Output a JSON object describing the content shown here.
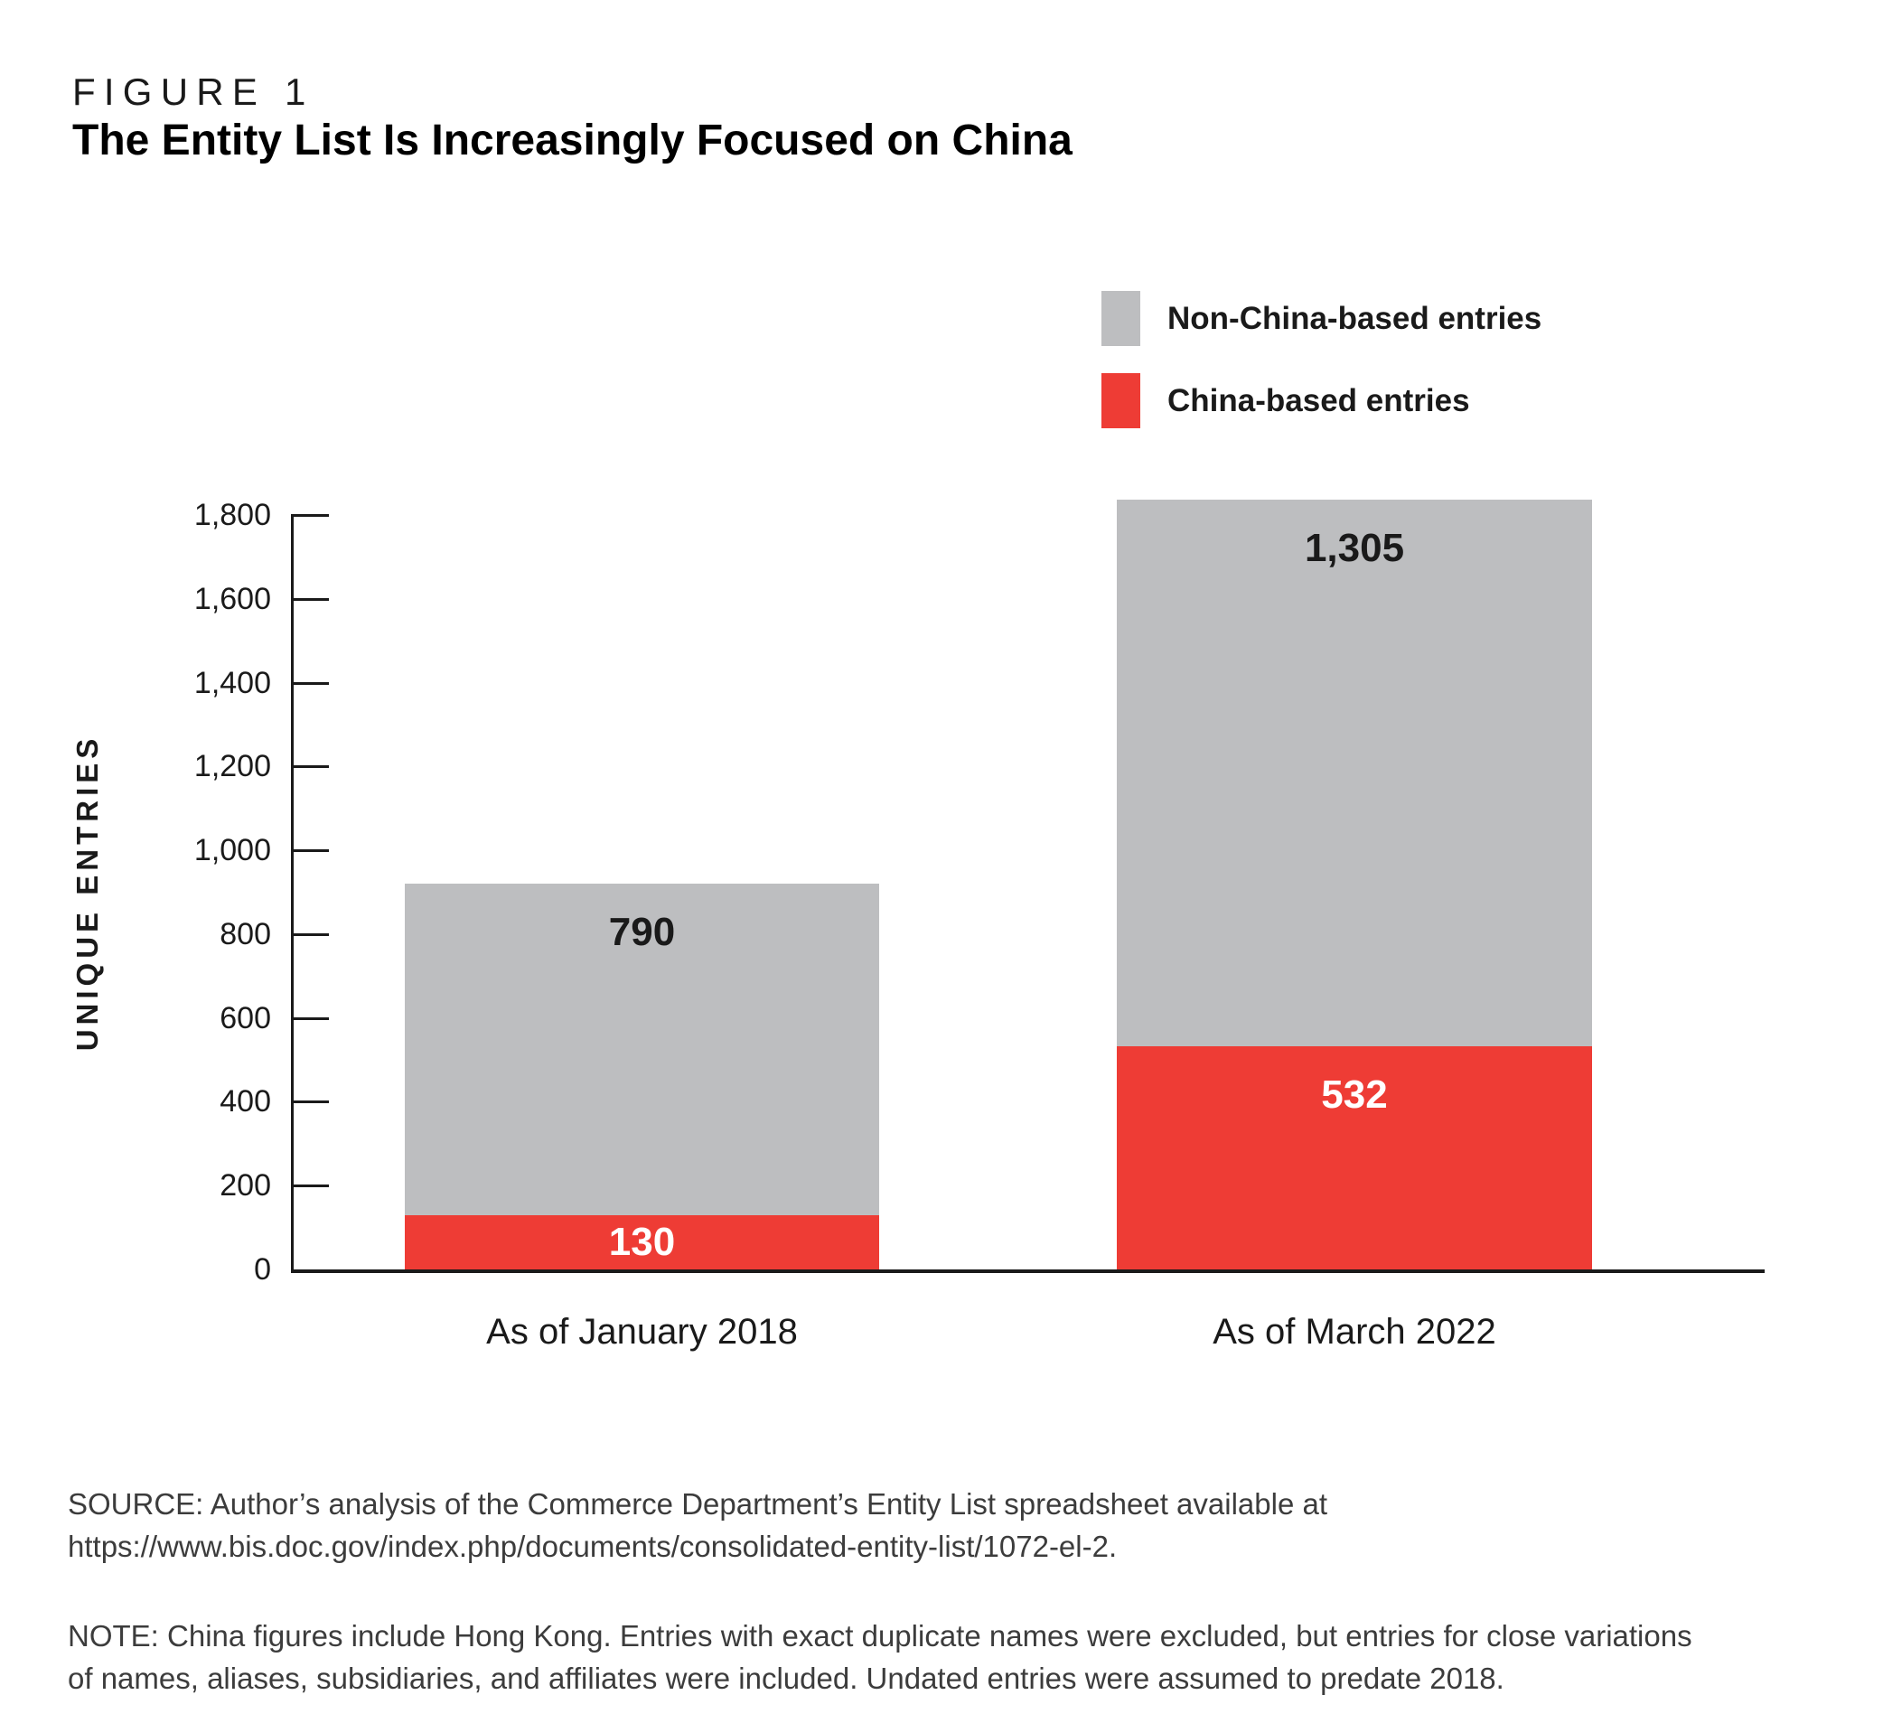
{
  "figure": {
    "label": "FIGURE 1",
    "title": "The Entity List Is Increasingly Focused on China"
  },
  "legend": [
    {
      "label": "Non-China-based entries",
      "color": "#bdbec0"
    },
    {
      "label": "China-based entries",
      "color": "#ee3c35"
    }
  ],
  "chart_data": {
    "type": "bar",
    "stacked": true,
    "categories": [
      "As of January 2018",
      "As of March 2022"
    ],
    "series": [
      {
        "name": "China-based entries",
        "color": "#ee3c35",
        "values": [
          130,
          532
        ],
        "display": [
          "130",
          "532"
        ]
      },
      {
        "name": "Non-China-based entries",
        "color": "#bdbec0",
        "values": [
          790,
          1305
        ],
        "display": [
          "790",
          "1,305"
        ]
      }
    ],
    "totals": [
      920,
      1837
    ],
    "title": "The Entity List Is Increasingly Focused on China",
    "xlabel": "",
    "ylabel": "UNIQUE ENTRIES",
    "ylim": [
      0,
      1800
    ],
    "ytick_step": 200,
    "ytick_labels": [
      "0",
      "200",
      "400",
      "600",
      "800",
      "1,000",
      "1,200",
      "1,400",
      "1,600",
      "1,800"
    ],
    "grid": false,
    "legend_position": "top-right"
  },
  "footer": {
    "source_lines": [
      "SOURCE: Author’s analysis of the Commerce Department’s Entity List spreadsheet available at",
      "https://www.bis.doc.gov/index.php/documents/consolidated-entity-list/1072-el-2."
    ],
    "note_lines": [
      "NOTE: China figures include Hong Kong. Entries with exact duplicate names were excluded, but entries for close variations",
      "of names, aliases, subsidiaries, and affiliates were included. Undated entries were assumed to predate 2018."
    ]
  }
}
